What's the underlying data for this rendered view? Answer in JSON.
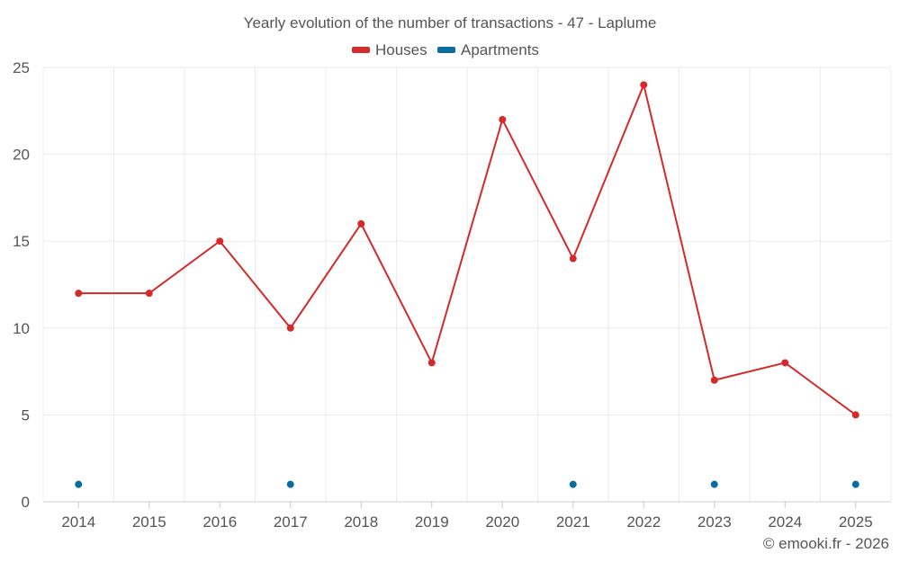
{
  "chart_data": {
    "type": "line",
    "title": "Yearly evolution of the number of transactions - 47 - Laplume",
    "categories": [
      "2014",
      "2015",
      "2016",
      "2017",
      "2018",
      "2019",
      "2020",
      "2021",
      "2022",
      "2023",
      "2024",
      "2025"
    ],
    "ylim": [
      0,
      25
    ],
    "yticks": [
      0,
      5,
      10,
      15,
      20,
      25
    ],
    "grid": true,
    "legend_position": "top-center",
    "series": [
      {
        "name": "Houses",
        "color": "#d42a2a",
        "values": [
          12,
          12,
          15,
          10,
          16,
          8,
          22,
          14,
          24,
          7,
          8,
          5
        ]
      },
      {
        "name": "Apartments",
        "color": "#086ca2",
        "values": [
          1,
          null,
          null,
          1,
          null,
          null,
          null,
          1,
          null,
          1,
          null,
          1
        ]
      }
    ],
    "credit": "© emooki.fr - 2026"
  }
}
